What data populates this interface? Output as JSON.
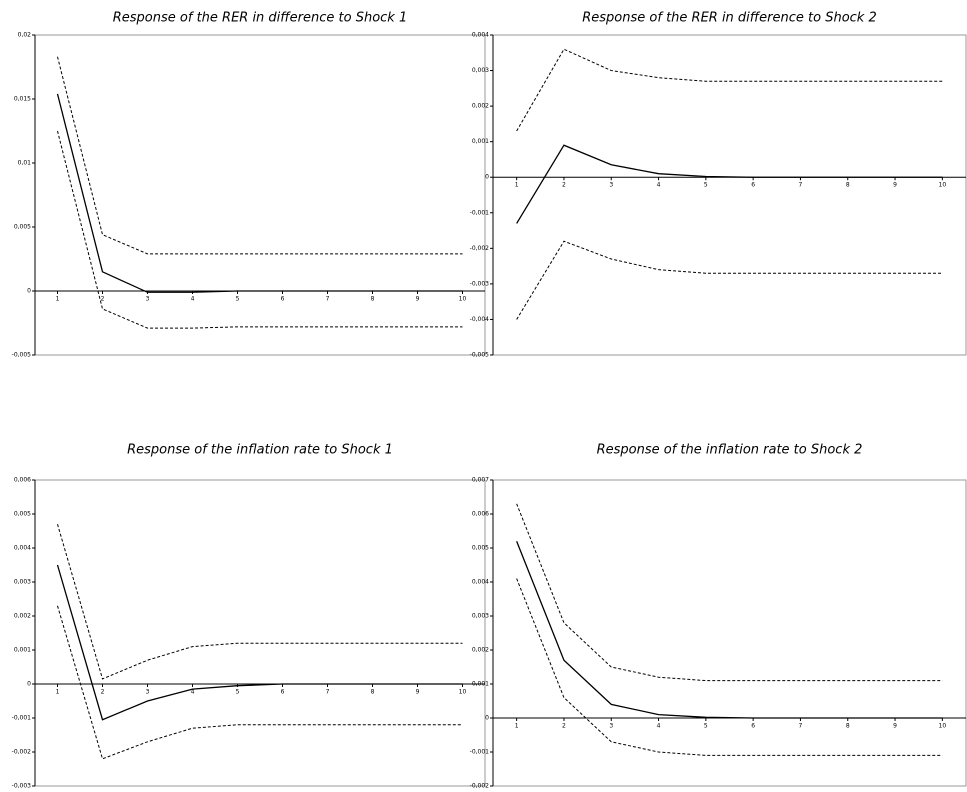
{
  "chart_data": [
    {
      "type": "line",
      "title": "Response of  the RER in difference to Shock 1",
      "categories": [
        "1",
        "2",
        "3",
        "4",
        "5",
        "6",
        "7",
        "8",
        "9",
        "10"
      ],
      "series": [
        {
          "color": "#000000",
          "style": "solid",
          "values": [
            0.0154,
            0.0015,
            -0.0001,
            -0.0001,
            0,
            0,
            0,
            0,
            0,
            0
          ]
        },
        {
          "color": "#000000",
          "style": "dashed",
          "values": [
            0.0183,
            0.0044,
            0.0029,
            0.0029,
            0.0029,
            0.0029,
            0.0029,
            0.0029,
            0.0029,
            0.0029
          ]
        },
        {
          "color": "#000000",
          "style": "dashed",
          "values": [
            0.0125,
            -0.0014,
            -0.0029,
            -0.0029,
            -0.0028,
            -0.0028,
            -0.0028,
            -0.0028,
            -0.0028,
            -0.0028
          ]
        }
      ],
      "ylim": [
        -0.005,
        0.02
      ],
      "yticks": [
        {
          "value": -0.005,
          "label": "-0,005"
        },
        0,
        {
          "value": 0.005,
          "label": "0,005"
        },
        {
          "value": 0.01,
          "label": "0,01"
        },
        {
          "value": 0.015,
          "label": "0,015"
        },
        {
          "value": 0.02,
          "label": "0,02"
        }
      ]
    },
    {
      "type": "line",
      "title": "Response of  the RER in difference to Shock 2",
      "categories": [
        "1",
        "2",
        "3",
        "4",
        "5",
        "6",
        "7",
        "8",
        "9",
        "10"
      ],
      "series": [
        {
          "color": "#000000",
          "style": "solid",
          "values": [
            -0.0013,
            0.0009,
            0.00035,
            0.0001,
            2e-05,
            0,
            0,
            0,
            0,
            0
          ]
        },
        {
          "color": "#000000",
          "style": "dashed",
          "values": [
            0.0013,
            0.0036,
            0.003,
            0.0028,
            0.0027,
            0.0027,
            0.0027,
            0.0027,
            0.0027,
            0.0027
          ]
        },
        {
          "color": "#000000",
          "style": "dashed",
          "values": [
            -0.004,
            -0.0018,
            -0.0023,
            -0.0026,
            -0.0027,
            -0.0027,
            -0.0027,
            -0.0027,
            -0.0027,
            -0.0027
          ]
        }
      ],
      "ylim": [
        -0.005,
        0.004
      ],
      "yticks": [
        {
          "value": -0.005,
          "label": "-0,005"
        },
        {
          "value": -0.004,
          "label": "-0,004"
        },
        {
          "value": -0.003,
          "label": "-0,003"
        },
        {
          "value": -0.002,
          "label": "-0,002"
        },
        {
          "value": -0.001,
          "label": "-0,001"
        },
        0,
        {
          "value": 0.001,
          "label": "0,001"
        },
        {
          "value": 0.002,
          "label": "0,002"
        },
        {
          "value": 0.003,
          "label": "0,003"
        },
        {
          "value": 0.004,
          "label": "0,004"
        }
      ]
    },
    {
      "type": "line",
      "title": "Response of  the inflation rate to Shock 1",
      "categories": [
        "1",
        "2",
        "3",
        "4",
        "5",
        "6",
        "7",
        "8",
        "9",
        "10"
      ],
      "series": [
        {
          "color": "#000000",
          "style": "solid",
          "values": [
            0.0035,
            -0.00105,
            -0.0005,
            -0.00015,
            -5e-05,
            0,
            0,
            0,
            0,
            0
          ]
        },
        {
          "color": "#000000",
          "style": "dashed",
          "values": [
            0.0047,
            0.00015,
            0.0007,
            0.0011,
            0.0012,
            0.0012,
            0.0012,
            0.0012,
            0.0012,
            0.0012
          ]
        },
        {
          "color": "#000000",
          "style": "dashed",
          "values": [
            0.0023,
            -0.0022,
            -0.0017,
            -0.0013,
            -0.0012,
            -0.0012,
            -0.0012,
            -0.0012,
            -0.0012,
            -0.0012
          ]
        }
      ],
      "ylim": [
        -0.003,
        0.006
      ],
      "yticks": [
        {
          "value": -0.003,
          "label": "-0,003"
        },
        {
          "value": -0.002,
          "label": "-0,002"
        },
        {
          "value": -0.001,
          "label": "-0,001"
        },
        0,
        {
          "value": 0.001,
          "label": "0,001"
        },
        {
          "value": 0.002,
          "label": "0,002"
        },
        {
          "value": 0.003,
          "label": "0,003"
        },
        {
          "value": 0.004,
          "label": "0,004"
        },
        {
          "value": 0.005,
          "label": "0,005"
        },
        {
          "value": 0.006,
          "label": "0,006"
        }
      ]
    },
    {
      "type": "line",
      "title": "Response of  the inflation rate to Shock 2",
      "categories": [
        "1",
        "2",
        "3",
        "4",
        "5",
        "6",
        "7",
        "8",
        "9",
        "10"
      ],
      "series": [
        {
          "color": "#000000",
          "style": "solid",
          "values": [
            0.0052,
            0.0017,
            0.0004,
            0.0001,
            2e-05,
            0,
            0,
            0,
            0,
            0
          ]
        },
        {
          "color": "#000000",
          "style": "dashed",
          "values": [
            0.0063,
            0.0028,
            0.0015,
            0.0012,
            0.0011,
            0.0011,
            0.0011,
            0.0011,
            0.0011,
            0.0011
          ]
        },
        {
          "color": "#000000",
          "style": "dashed",
          "values": [
            0.0041,
            0.0006,
            -0.0007,
            -0.001,
            -0.0011,
            -0.0011,
            -0.0011,
            -0.0011,
            -0.0011,
            -0.0011
          ]
        }
      ],
      "ylim": [
        -0.002,
        0.007
      ],
      "yticks": [
        {
          "value": -0.002,
          "label": "-0,002"
        },
        {
          "value": -0.001,
          "label": "-0,001"
        },
        0,
        {
          "value": 0.001,
          "label": "0,001"
        },
        {
          "value": 0.002,
          "label": "0,002"
        },
        {
          "value": 0.003,
          "label": "0,003"
        },
        {
          "value": 0.004,
          "label": "0,004"
        },
        {
          "value": 0.005,
          "label": "0,005"
        },
        {
          "value": 0.006,
          "label": "0,006"
        },
        {
          "value": 0.007,
          "label": "0,007"
        }
      ]
    }
  ]
}
